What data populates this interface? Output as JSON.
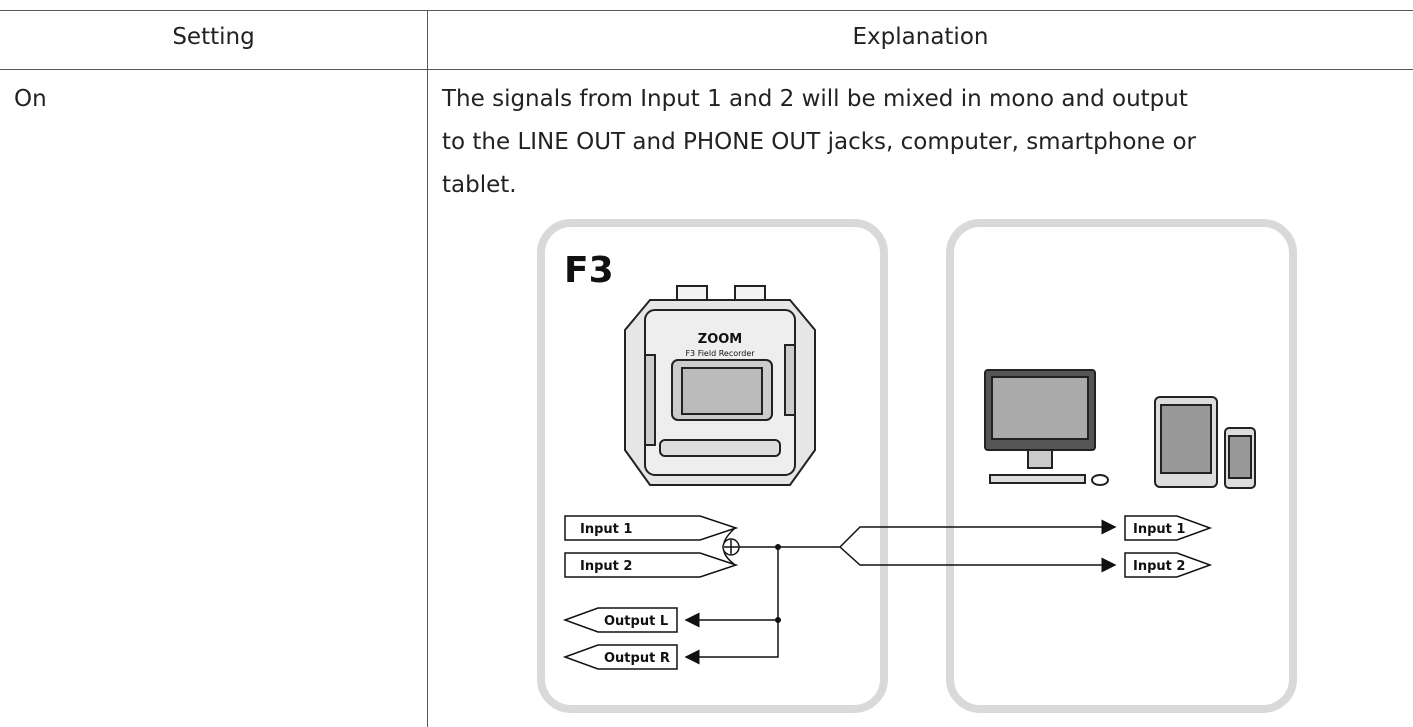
{
  "table": {
    "header": [
      "Setting",
      "Explanation"
    ],
    "rows": [
      {
        "setting": "On",
        "explanation": [
          "The signals from Input 1 and 2 will be mixed in mono and output",
          "to the LINE OUT and PHONE OUT jacks, computer, smartphone or",
          "tablet."
        ]
      }
    ]
  },
  "diagram": {
    "device_label": "F3",
    "device_brand": "ZOOM",
    "device_model": "F3 Field Recorder",
    "left_inputs": [
      "Input 1",
      "Input 2"
    ],
    "left_outputs": [
      "Output L",
      "Output R"
    ],
    "right_inputs": [
      "Input 1",
      "Input 2"
    ]
  }
}
